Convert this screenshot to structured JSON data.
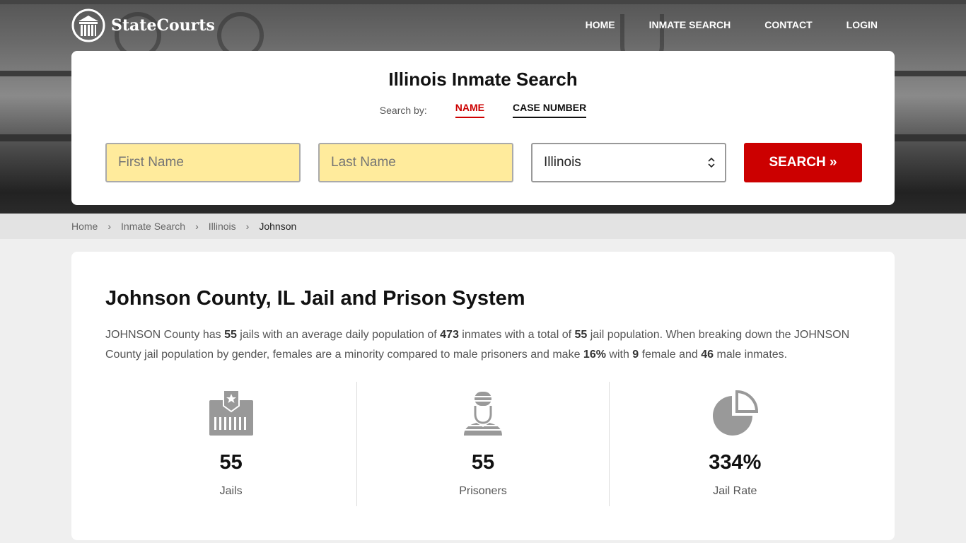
{
  "brand": "StateCourts",
  "nav": [
    "HOME",
    "INMATE SEARCH",
    "CONTACT",
    "LOGIN"
  ],
  "search": {
    "title": "Illinois Inmate Search",
    "search_by": "Search by:",
    "tabs": [
      "NAME",
      "CASE NUMBER"
    ],
    "first_placeholder": "First Name",
    "last_placeholder": "Last Name",
    "state": "Illinois",
    "button": "SEARCH »"
  },
  "breadcrumb": [
    "Home",
    "Inmate Search",
    "Illinois",
    "Johnson"
  ],
  "main": {
    "title": "Johnson County, IL Jail and Prison System",
    "p": [
      "JOHNSON County has ",
      "55",
      " jails with an average daily population of ",
      "473",
      " inmates with a total of ",
      "55",
      " jail population. When breaking down the JOHNSON County jail population by gender, females are a minority compared to male prisoners and make ",
      "16%",
      " with ",
      "9",
      " female and ",
      "46",
      " male inmates."
    ],
    "stats": [
      {
        "value": "55",
        "label": "Jails",
        "icon": "jail-icon"
      },
      {
        "value": "55",
        "label": "Prisoners",
        "icon": "prisoner-icon"
      },
      {
        "value": "334%",
        "label": "Jail Rate",
        "icon": "pie-chart-icon"
      }
    ]
  },
  "colors": {
    "accent": "#cc0000",
    "input_bg": "#ffeb9c"
  }
}
